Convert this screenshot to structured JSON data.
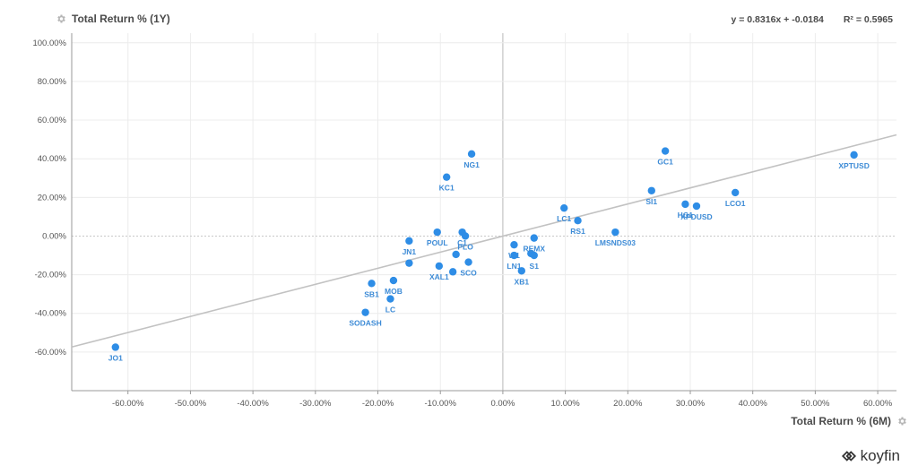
{
  "chart_data": {
    "type": "scatter",
    "title": "",
    "xlabel": "Total Return % (6M)",
    "ylabel": "Total Return % (1Y)",
    "xlim": [
      -69,
      63
    ],
    "ylim": [
      -80,
      105
    ],
    "x_ticks": [
      -60,
      -50,
      -40,
      -30,
      -20,
      -10,
      0,
      10,
      20,
      30,
      40,
      50,
      60
    ],
    "x_tick_labels": [
      "-60.00%",
      "-50.00%",
      "-40.00%",
      "-30.00%",
      "-20.00%",
      "-10.00%",
      "0.00%",
      "10.00%",
      "20.00%",
      "30.00%",
      "40.00%",
      "50.00%",
      "60.00%"
    ],
    "y_ticks": [
      -60,
      -40,
      -20,
      0,
      20,
      40,
      60,
      80,
      100
    ],
    "y_tick_labels": [
      "-60.00%",
      "-40.00%",
      "-20.00%",
      "0.00%",
      "20.00%",
      "40.00%",
      "60.00%",
      "80.00%",
      "100.00%"
    ],
    "grid": true,
    "regression": {
      "equation": "y = 0.8316x + -0.0184",
      "r_squared": "R² = 0.5965",
      "slope": 0.8316,
      "intercept": -0.0184
    },
    "point_color": "#2e8de6",
    "points": [
      {
        "label": "JO1",
        "x": -62.0,
        "y": -57.5
      },
      {
        "label": "SODASH",
        "x": -22.0,
        "y": -39.5
      },
      {
        "label": "LC",
        "x": -18.0,
        "y": -32.5
      },
      {
        "label": "SB1",
        "x": -21.0,
        "y": -24.5
      },
      {
        "label": "MOB",
        "x": -17.5,
        "y": -23.0
      },
      {
        "label": "",
        "x": -15.0,
        "y": -14.0
      },
      {
        "label": "JN1",
        "x": -15.0,
        "y": -2.5
      },
      {
        "label": "POUL",
        "x": -10.5,
        "y": 2.0
      },
      {
        "label": "XAL1",
        "x": -10.2,
        "y": -15.5
      },
      {
        "label": "",
        "x": -8.0,
        "y": -18.5
      },
      {
        "label": "",
        "x": -7.5,
        "y": -9.5
      },
      {
        "label": "SCO",
        "x": -5.5,
        "y": -13.5
      },
      {
        "label": "C1",
        "x": -6.5,
        "y": 2.0
      },
      {
        "label": "PLO",
        "x": -6.0,
        "y": 0.0
      },
      {
        "label": "KC1",
        "x": -9.0,
        "y": 30.5
      },
      {
        "label": "NG1",
        "x": -5.0,
        "y": 42.5
      },
      {
        "label": "W1",
        "x": 1.8,
        "y": -4.5
      },
      {
        "label": "LN1",
        "x": 1.8,
        "y": -10.0
      },
      {
        "label": "XB1",
        "x": 3.0,
        "y": -18.0
      },
      {
        "label": "",
        "x": 4.5,
        "y": -9.0
      },
      {
        "label": "S1",
        "x": 5.0,
        "y": -10.0
      },
      {
        "label": "REMX",
        "x": 5.0,
        "y": -1.0
      },
      {
        "label": "LC1",
        "x": 9.8,
        "y": 14.5
      },
      {
        "label": "RS1",
        "x": 12.0,
        "y": 8.0
      },
      {
        "label": "LMSNDS03",
        "x": 18.0,
        "y": 2.0
      },
      {
        "label": "GC1",
        "x": 26.0,
        "y": 44.0
      },
      {
        "label": "SI1",
        "x": 23.8,
        "y": 23.5
      },
      {
        "label": "HG1",
        "x": 29.2,
        "y": 16.5
      },
      {
        "label": "XPDUSD",
        "x": 31.0,
        "y": 15.5
      },
      {
        "label": "LCO1",
        "x": 37.2,
        "y": 22.5
      },
      {
        "label": "XPTUSD",
        "x": 56.2,
        "y": 42.0
      }
    ]
  },
  "brand": {
    "name": "koyfin"
  },
  "icons": {
    "y_title_icon": "gear-icon",
    "x_title_icon": "gear-icon",
    "brand_icon": "koyfin-logo-icon"
  }
}
